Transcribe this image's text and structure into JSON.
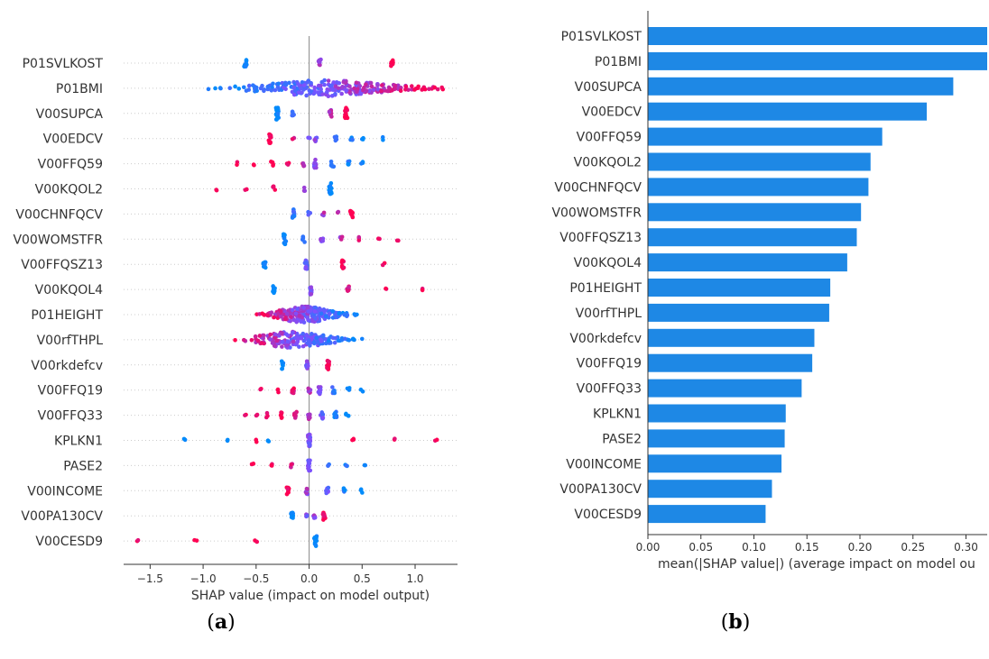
{
  "chart_data": [
    {
      "type": "scatter",
      "subtype": "beeswarm",
      "panel_label": "a",
      "xlabel": "SHAP value (impact on model output)",
      "xlim": [
        -1.75,
        1.4
      ],
      "xticks": [
        -1.5,
        -1.0,
        -0.5,
        0.0,
        0.5,
        1.0
      ],
      "xtick_labels": [
        "−1.5",
        "−1.0",
        "−0.5",
        "0.0",
        "0.5",
        "1.0"
      ],
      "colors": {
        "low_feature_value": "#008bfb",
        "high_feature_value": "#ff0052"
      },
      "grid": "dotted row lines",
      "features": [
        {
          "name": "P01SVLKOST",
          "clusters": [
            [
              -0.6,
              0.0,
              10
            ],
            [
              0.1,
              0.6,
              10
            ],
            [
              0.78,
              1.0,
              8
            ]
          ]
        },
        {
          "name": "P01BMI",
          "spread": [
            -0.95,
            1.32
          ],
          "center": 0.0,
          "count": 260
        },
        {
          "name": "V00SUPCA",
          "clusters": [
            [
              -0.3,
              0.0,
              20
            ],
            [
              -0.15,
              0.3,
              6
            ],
            [
              0.2,
              0.7,
              8
            ],
            [
              0.35,
              1.0,
              16
            ]
          ]
        },
        {
          "name": "V00EDCV",
          "clusters": [
            [
              -0.37,
              1.0,
              12
            ],
            [
              -0.15,
              0.9,
              2
            ],
            [
              0.0,
              0.4,
              2
            ],
            [
              0.06,
              0.5,
              6
            ],
            [
              0.25,
              0.2,
              6
            ],
            [
              0.4,
              0.1,
              4
            ],
            [
              0.5,
              0.0,
              3
            ],
            [
              0.7,
              0.0,
              2
            ]
          ]
        },
        {
          "name": "V00FFQ59",
          "clusters": [
            [
              -0.68,
              1.0,
              2
            ],
            [
              -0.52,
              1.0,
              2
            ],
            [
              -0.35,
              1.0,
              4
            ],
            [
              -0.2,
              0.9,
              3
            ],
            [
              -0.05,
              0.8,
              5
            ],
            [
              0.06,
              0.5,
              10
            ],
            [
              0.22,
              0.1,
              6
            ],
            [
              0.37,
              0.1,
              6
            ],
            [
              0.5,
              0.0,
              3
            ]
          ]
        },
        {
          "name": "V00KQOL2",
          "clusters": [
            [
              -0.88,
              1.0,
              2
            ],
            [
              -0.6,
              1.0,
              2
            ],
            [
              -0.33,
              0.9,
              4
            ],
            [
              -0.05,
              0.6,
              3
            ],
            [
              0.2,
              0.0,
              16
            ]
          ]
        },
        {
          "name": "V00CHNFQCV",
          "clusters": [
            [
              -0.15,
              0.2,
              12
            ],
            [
              0.0,
              0.3,
              3
            ],
            [
              0.13,
              0.7,
              3
            ],
            [
              0.27,
              0.8,
              3
            ],
            [
              0.4,
              1.0,
              10
            ]
          ]
        },
        {
          "name": "V00WOMSTFR",
          "clusters": [
            [
              -0.23,
              0.0,
              14
            ],
            [
              -0.05,
              0.2,
              6
            ],
            [
              0.12,
              0.5,
              5
            ],
            [
              0.3,
              0.7,
              4
            ],
            [
              0.48,
              0.9,
              3
            ],
            [
              0.66,
              1.0,
              2
            ],
            [
              0.84,
              1.0,
              2
            ]
          ]
        },
        {
          "name": "V00FFQSZ13",
          "clusters": [
            [
              -0.42,
              0.0,
              8
            ],
            [
              -0.03,
              0.4,
              14
            ],
            [
              0.32,
              1.0,
              10
            ],
            [
              0.7,
              1.0,
              2
            ]
          ]
        },
        {
          "name": "V00KQOL4",
          "clusters": [
            [
              -0.33,
              0.0,
              10
            ],
            [
              0.02,
              0.5,
              14
            ],
            [
              0.37,
              0.9,
              8
            ],
            [
              0.72,
              1.0,
              2
            ],
            [
              1.06,
              1.0,
              2
            ]
          ]
        },
        {
          "name": "P01HEIGHT",
          "spread": [
            -0.5,
            0.45
          ],
          "center": 0.0,
          "count": 230
        },
        {
          "name": "V00rfTHPL",
          "spread": [
            -0.75,
            0.5
          ],
          "center": 0.0,
          "count": 180
        },
        {
          "name": "V00rkdefcv",
          "clusters": [
            [
              -0.25,
              0.0,
              10
            ],
            [
              -0.02,
              0.5,
              10
            ],
            [
              0.18,
              1.0,
              12
            ]
          ]
        },
        {
          "name": "V00FFQ19",
          "clusters": [
            [
              -0.45,
              1.0,
              2
            ],
            [
              -0.3,
              1.0,
              3
            ],
            [
              -0.15,
              0.9,
              6
            ],
            [
              0.0,
              0.7,
              6
            ],
            [
              0.1,
              0.5,
              10
            ],
            [
              0.23,
              0.2,
              6
            ],
            [
              0.37,
              0.0,
              3
            ],
            [
              0.5,
              0.0,
              2
            ]
          ]
        },
        {
          "name": "V00FFQ33",
          "clusters": [
            [
              -0.6,
              1.0,
              2
            ],
            [
              -0.5,
              1.0,
              2
            ],
            [
              -0.4,
              1.0,
              3
            ],
            [
              -0.27,
              1.0,
              6
            ],
            [
              -0.13,
              0.9,
              8
            ],
            [
              0.0,
              0.7,
              10
            ],
            [
              0.12,
              0.4,
              8
            ],
            [
              0.25,
              0.1,
              8
            ],
            [
              0.36,
              0.0,
              4
            ]
          ]
        },
        {
          "name": "KPLKN1",
          "clusters": [
            [
              -1.17,
              0.0,
              2
            ],
            [
              -0.78,
              0.0,
              2
            ],
            [
              -0.5,
              1.0,
              2
            ],
            [
              -0.38,
              0.0,
              3
            ],
            [
              0.0,
              0.5,
              26
            ],
            [
              0.42,
              1.0,
              3
            ],
            [
              0.8,
              1.0,
              2
            ],
            [
              1.2,
              1.0,
              2
            ]
          ]
        },
        {
          "name": "PASE2",
          "clusters": [
            [
              -0.53,
              1.0,
              2
            ],
            [
              -0.35,
              1.0,
              3
            ],
            [
              -0.17,
              0.9,
              4
            ],
            [
              0.0,
              0.5,
              14
            ],
            [
              0.18,
              0.2,
              3
            ],
            [
              0.35,
              0.1,
              3
            ],
            [
              0.52,
              0.0,
              2
            ]
          ]
        },
        {
          "name": "V00INCOME",
          "clusters": [
            [
              -0.2,
              1.0,
              8
            ],
            [
              -0.02,
              0.6,
              8
            ],
            [
              0.17,
              0.4,
              6
            ],
            [
              0.33,
              0.1,
              4
            ],
            [
              0.5,
              0.0,
              3
            ]
          ]
        },
        {
          "name": "V00PA130CV",
          "clusters": [
            [
              -0.16,
              0.0,
              8
            ],
            [
              -0.03,
              0.5,
              4
            ],
            [
              0.05,
              0.6,
              5
            ],
            [
              0.14,
              1.0,
              10
            ]
          ]
        },
        {
          "name": "V00CESD9",
          "clusters": [
            [
              -1.62,
              1.0,
              2
            ],
            [
              -1.07,
              1.0,
              2
            ],
            [
              -0.5,
              1.0,
              2
            ],
            [
              0.06,
              0.0,
              14
            ]
          ]
        }
      ]
    },
    {
      "type": "bar",
      "orientation": "horizontal",
      "panel_label": "b",
      "xlabel": "mean(|SHAP value|) (average impact on model ou",
      "xlim": [
        0.0,
        0.32
      ],
      "xticks": [
        0.0,
        0.05,
        0.1,
        0.15,
        0.2,
        0.25,
        0.3
      ],
      "xtick_labels": [
        "0.00",
        "0.05",
        "0.10",
        "0.15",
        "0.20",
        "0.25",
        "0.30"
      ],
      "bar_color": "#1e88e5",
      "categories": [
        "P01SVLKOST",
        "P01BMI",
        "V00SUPCA",
        "V00EDCV",
        "V00FFQ59",
        "V00KQOL2",
        "V00CHNFQCV",
        "V00WOMSTFR",
        "V00FFQSZ13",
        "V00KQOL4",
        "P01HEIGHT",
        "V00rfTHPL",
        "V00rkdefcv",
        "V00FFQ19",
        "V00FFQ33",
        "KPLKN1",
        "PASE2",
        "V00INCOME",
        "V00PA130CV",
        "V00CESD9"
      ],
      "values": [
        0.325,
        0.325,
        0.288,
        0.263,
        0.221,
        0.21,
        0.208,
        0.201,
        0.197,
        0.188,
        0.172,
        0.171,
        0.157,
        0.155,
        0.145,
        0.13,
        0.129,
        0.126,
        0.117,
        0.111
      ]
    }
  ]
}
